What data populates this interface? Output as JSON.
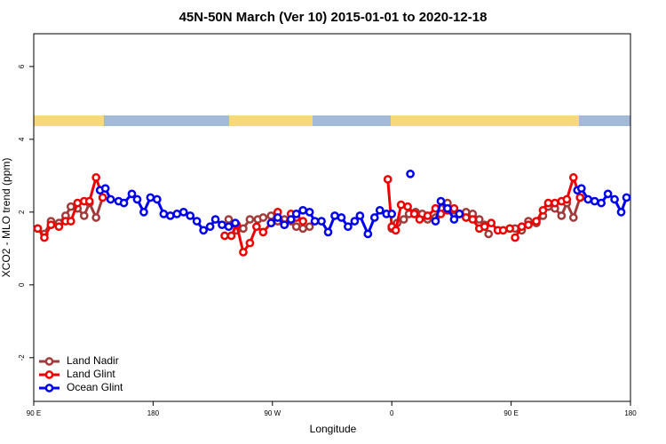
{
  "chart_data": {
    "type": "line",
    "title": "45N-50N March (Ver 10)   2015-01-01 to 2020-12-18",
    "x_label": "Longitude",
    "y_label": "XCO2 - MLO trend (ppm)",
    "xlim": [
      90,
      540
    ],
    "xticks": [
      {
        "value": 90,
        "label": "90 E"
      },
      180,
      {
        "value": 270,
        "label": "90 W"
      },
      {
        "value": 360,
        "label": "0"
      },
      {
        "value": 450,
        "label": "90 E"
      },
      {
        "value": 540,
        "label": "180"
      }
    ],
    "ylim": [
      -3.2,
      6.9
    ],
    "yticks": [
      -2,
      0,
      2,
      4,
      6
    ],
    "legend": "bottom-left",
    "series": [
      {
        "name": "Land Nadir",
        "color": "#a33a3a",
        "x": [
          93,
          98,
          103,
          109,
          114,
          118,
          123,
          128,
          132,
          137,
          142,
          null,
          237,
          243,
          248,
          253,
          259,
          263,
          269,
          274,
          279,
          284,
          288,
          293,
          298,
          null,
          360,
          364,
          369,
          373,
          378,
          383,
          387,
          393,
          397,
          402,
          407,
          411,
          416,
          421,
          426,
          430,
          433,
          null,
          453,
          458,
          463,
          469,
          474,
          478,
          483,
          488,
          492,
          497,
          502
        ],
        "values": [
          1.55,
          1.4,
          1.75,
          1.7,
          1.9,
          2.15,
          2.1,
          1.9,
          2.25,
          1.85,
          2.4,
          null,
          1.8,
          1.5,
          1.55,
          1.8,
          1.8,
          1.85,
          1.9,
          1.75,
          1.8,
          1.75,
          1.6,
          1.55,
          1.6,
          null,
          1.55,
          1.7,
          1.8,
          1.95,
          2.0,
          1.95,
          1.8,
          1.85,
          2.1,
          2.25,
          2.05,
          1.95,
          2.0,
          1.95,
          1.8,
          1.65,
          1.4,
          null,
          1.55,
          1.5,
          1.75,
          1.7,
          1.9,
          2.15,
          2.1,
          1.9,
          2.25,
          1.85,
          2.4
        ]
      },
      {
        "name": "Land Glint",
        "color": "#ee0000",
        "x": [
          93,
          98,
          103,
          109,
          114,
          118,
          123,
          128,
          132,
          137,
          142,
          null,
          234,
          239,
          243,
          248,
          253,
          258,
          263,
          269,
          274,
          279,
          284,
          288,
          293,
          null,
          357,
          360,
          363,
          367,
          372,
          377,
          381,
          387,
          393,
          397,
          402,
          407,
          411,
          416,
          421,
          426,
          430,
          435,
          440,
          444,
          449,
          null,
          453,
          458,
          463,
          469,
          474,
          478,
          483,
          488,
          492,
          497,
          502
        ],
        "values": [
          1.55,
          1.3,
          1.65,
          1.6,
          1.75,
          1.75,
          2.25,
          2.3,
          2.3,
          2.95,
          2.4,
          null,
          1.35,
          1.35,
          1.65,
          0.9,
          1.15,
          1.6,
          1.45,
          1.7,
          2.0,
          1.65,
          1.95,
          1.85,
          1.75,
          null,
          2.9,
          1.6,
          1.5,
          2.2,
          2.15,
          1.95,
          1.8,
          1.9,
          2.1,
          1.95,
          2.05,
          2.1,
          1.95,
          1.85,
          1.8,
          1.55,
          1.6,
          1.7,
          1.5,
          1.5,
          1.55,
          null,
          1.3,
          1.6,
          1.65,
          1.75,
          2.05,
          2.25,
          2.25,
          2.3,
          2.35,
          2.95,
          2.4
        ]
      },
      {
        "name": "Ocean Glint",
        "color": "#0000ee",
        "x": [
          140,
          144,
          148,
          154,
          158,
          164,
          168,
          173,
          178,
          183,
          188,
          193,
          198,
          203,
          208,
          213,
          218,
          223,
          227,
          232,
          237,
          242,
          null,
          269,
          274,
          279,
          284,
          288,
          293,
          298,
          302,
          307,
          312,
          317,
          322,
          327,
          332,
          336,
          342,
          347,
          351,
          356,
          360,
          null,
          374,
          null,
          393,
          397,
          402,
          407,
          411,
          null,
          500,
          503,
          508,
          513,
          518,
          523,
          528,
          533,
          537
        ],
        "values": [
          2.6,
          2.65,
          2.35,
          2.3,
          2.25,
          2.5,
          2.35,
          2.0,
          2.4,
          2.35,
          1.95,
          1.9,
          1.95,
          2.0,
          1.9,
          1.75,
          1.5,
          1.6,
          1.8,
          1.65,
          1.6,
          1.7,
          null,
          1.7,
          1.85,
          1.65,
          1.8,
          1.95,
          2.05,
          2.0,
          1.75,
          1.75,
          1.45,
          1.9,
          1.85,
          1.6,
          1.75,
          1.9,
          1.4,
          1.85,
          2.05,
          1.95,
          1.95,
          null,
          3.05,
          null,
          1.75,
          2.3,
          2.1,
          1.8,
          1.95,
          null,
          2.6,
          2.65,
          2.35,
          2.3,
          2.25,
          2.5,
          2.35,
          2.0,
          2.4
        ]
      }
    ]
  }
}
